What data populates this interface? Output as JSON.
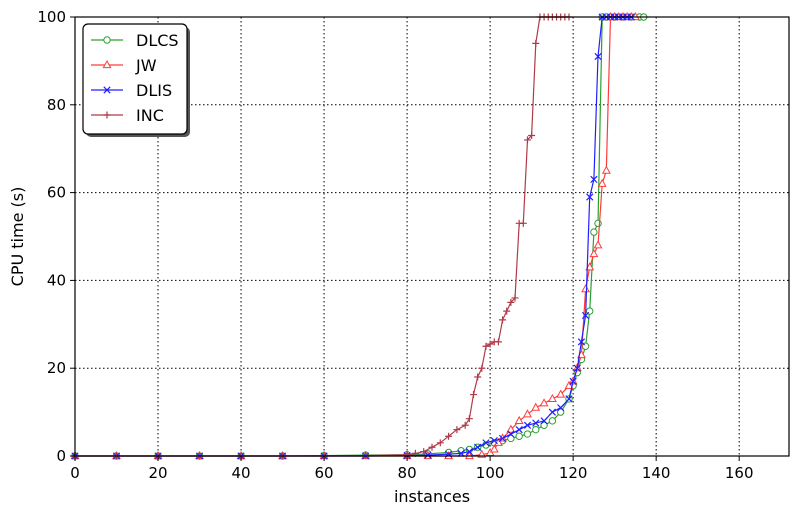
{
  "chart_data": {
    "type": "line",
    "xlabel": "instances",
    "ylabel": "CPU time (s)",
    "xlim": [
      0,
      172
    ],
    "ylim": [
      0,
      100
    ],
    "xticks": [
      0,
      20,
      40,
      60,
      80,
      100,
      120,
      140,
      160
    ],
    "yticks": [
      0,
      20,
      40,
      60,
      80,
      100
    ],
    "grid": true,
    "legend_position": "top-left",
    "series": [
      {
        "name": "DLCS",
        "color": "#2ca02c",
        "marker": "circle",
        "x": [
          0,
          10,
          20,
          30,
          40,
          50,
          60,
          70,
          80,
          85,
          90,
          93,
          95,
          97,
          99,
          101,
          103,
          105,
          107,
          109,
          111,
          113,
          115,
          117,
          119,
          120,
          121,
          122,
          123,
          124,
          125,
          126,
          127,
          128,
          130,
          132,
          134,
          136,
          137
        ],
        "y": [
          0,
          0,
          0,
          0,
          0,
          0,
          0.1,
          0.2,
          0.3,
          0.5,
          0.8,
          1.2,
          1.5,
          2,
          2.5,
          3,
          3.5,
          4,
          4.5,
          5,
          6,
          7,
          8,
          10,
          13,
          16,
          19,
          22,
          25,
          33,
          51,
          53,
          100,
          100,
          100,
          100,
          100,
          100,
          100
        ]
      },
      {
        "name": "JW",
        "color": "#ff3b3b",
        "marker": "triangle",
        "x": [
          0,
          10,
          20,
          30,
          40,
          50,
          60,
          70,
          80,
          85,
          90,
          95,
          98,
          100,
          101,
          102,
          103,
          105,
          107,
          109,
          111,
          113,
          115,
          117,
          119,
          120,
          121,
          122,
          123,
          124,
          125,
          126,
          127,
          128,
          129,
          130,
          131,
          132,
          133,
          134,
          135
        ],
        "y": [
          0,
          0,
          0,
          0,
          0,
          0,
          0,
          0,
          0,
          0,
          0,
          0,
          0.3,
          0.7,
          1.5,
          3,
          4,
          6,
          8,
          9.5,
          11,
          12,
          13,
          14,
          16,
          17,
          20,
          23,
          38,
          43,
          46,
          48,
          62,
          65,
          100,
          100,
          100,
          100,
          100,
          100,
          100
        ]
      },
      {
        "name": "DLIS",
        "color": "#2020ff",
        "marker": "x",
        "x": [
          0,
          10,
          20,
          30,
          40,
          50,
          60,
          70,
          80,
          85,
          90,
          93,
          95,
          97,
          99,
          101,
          103,
          105,
          107,
          109,
          111,
          113,
          115,
          117,
          119,
          120,
          121,
          122,
          123,
          124,
          125,
          126,
          127,
          128,
          129,
          130,
          131,
          132,
          133,
          134
        ],
        "y": [
          0,
          0,
          0,
          0,
          0,
          0,
          0,
          0,
          0.1,
          0.2,
          0.4,
          0.6,
          1,
          2,
          3,
          3.5,
          4,
          5,
          6,
          7,
          7.5,
          8,
          10,
          11,
          13,
          17,
          20,
          26,
          32,
          59,
          63,
          91,
          100,
          100,
          100,
          100,
          100,
          100,
          100,
          100
        ]
      },
      {
        "name": "INC",
        "color": "#b03a48",
        "marker": "plus",
        "x": [
          0,
          10,
          20,
          30,
          40,
          50,
          60,
          70,
          80,
          82,
          84,
          86,
          88,
          90,
          92,
          94,
          95,
          96,
          97,
          98,
          99,
          100,
          101,
          102,
          103,
          104,
          105,
          106,
          107,
          108,
          109,
          110,
          111,
          112,
          113,
          114,
          115,
          116,
          117,
          118,
          119
        ],
        "y": [
          0,
          0,
          0,
          0,
          0,
          0,
          0,
          0.1,
          0.3,
          0.6,
          1,
          2,
          3,
          4.5,
          6,
          7,
          8.5,
          14,
          18,
          20,
          25,
          25.5,
          26,
          26,
          31,
          33,
          35,
          36,
          53,
          53,
          72,
          73,
          94,
          100,
          100,
          100,
          100,
          100,
          100,
          100,
          100
        ]
      }
    ]
  }
}
